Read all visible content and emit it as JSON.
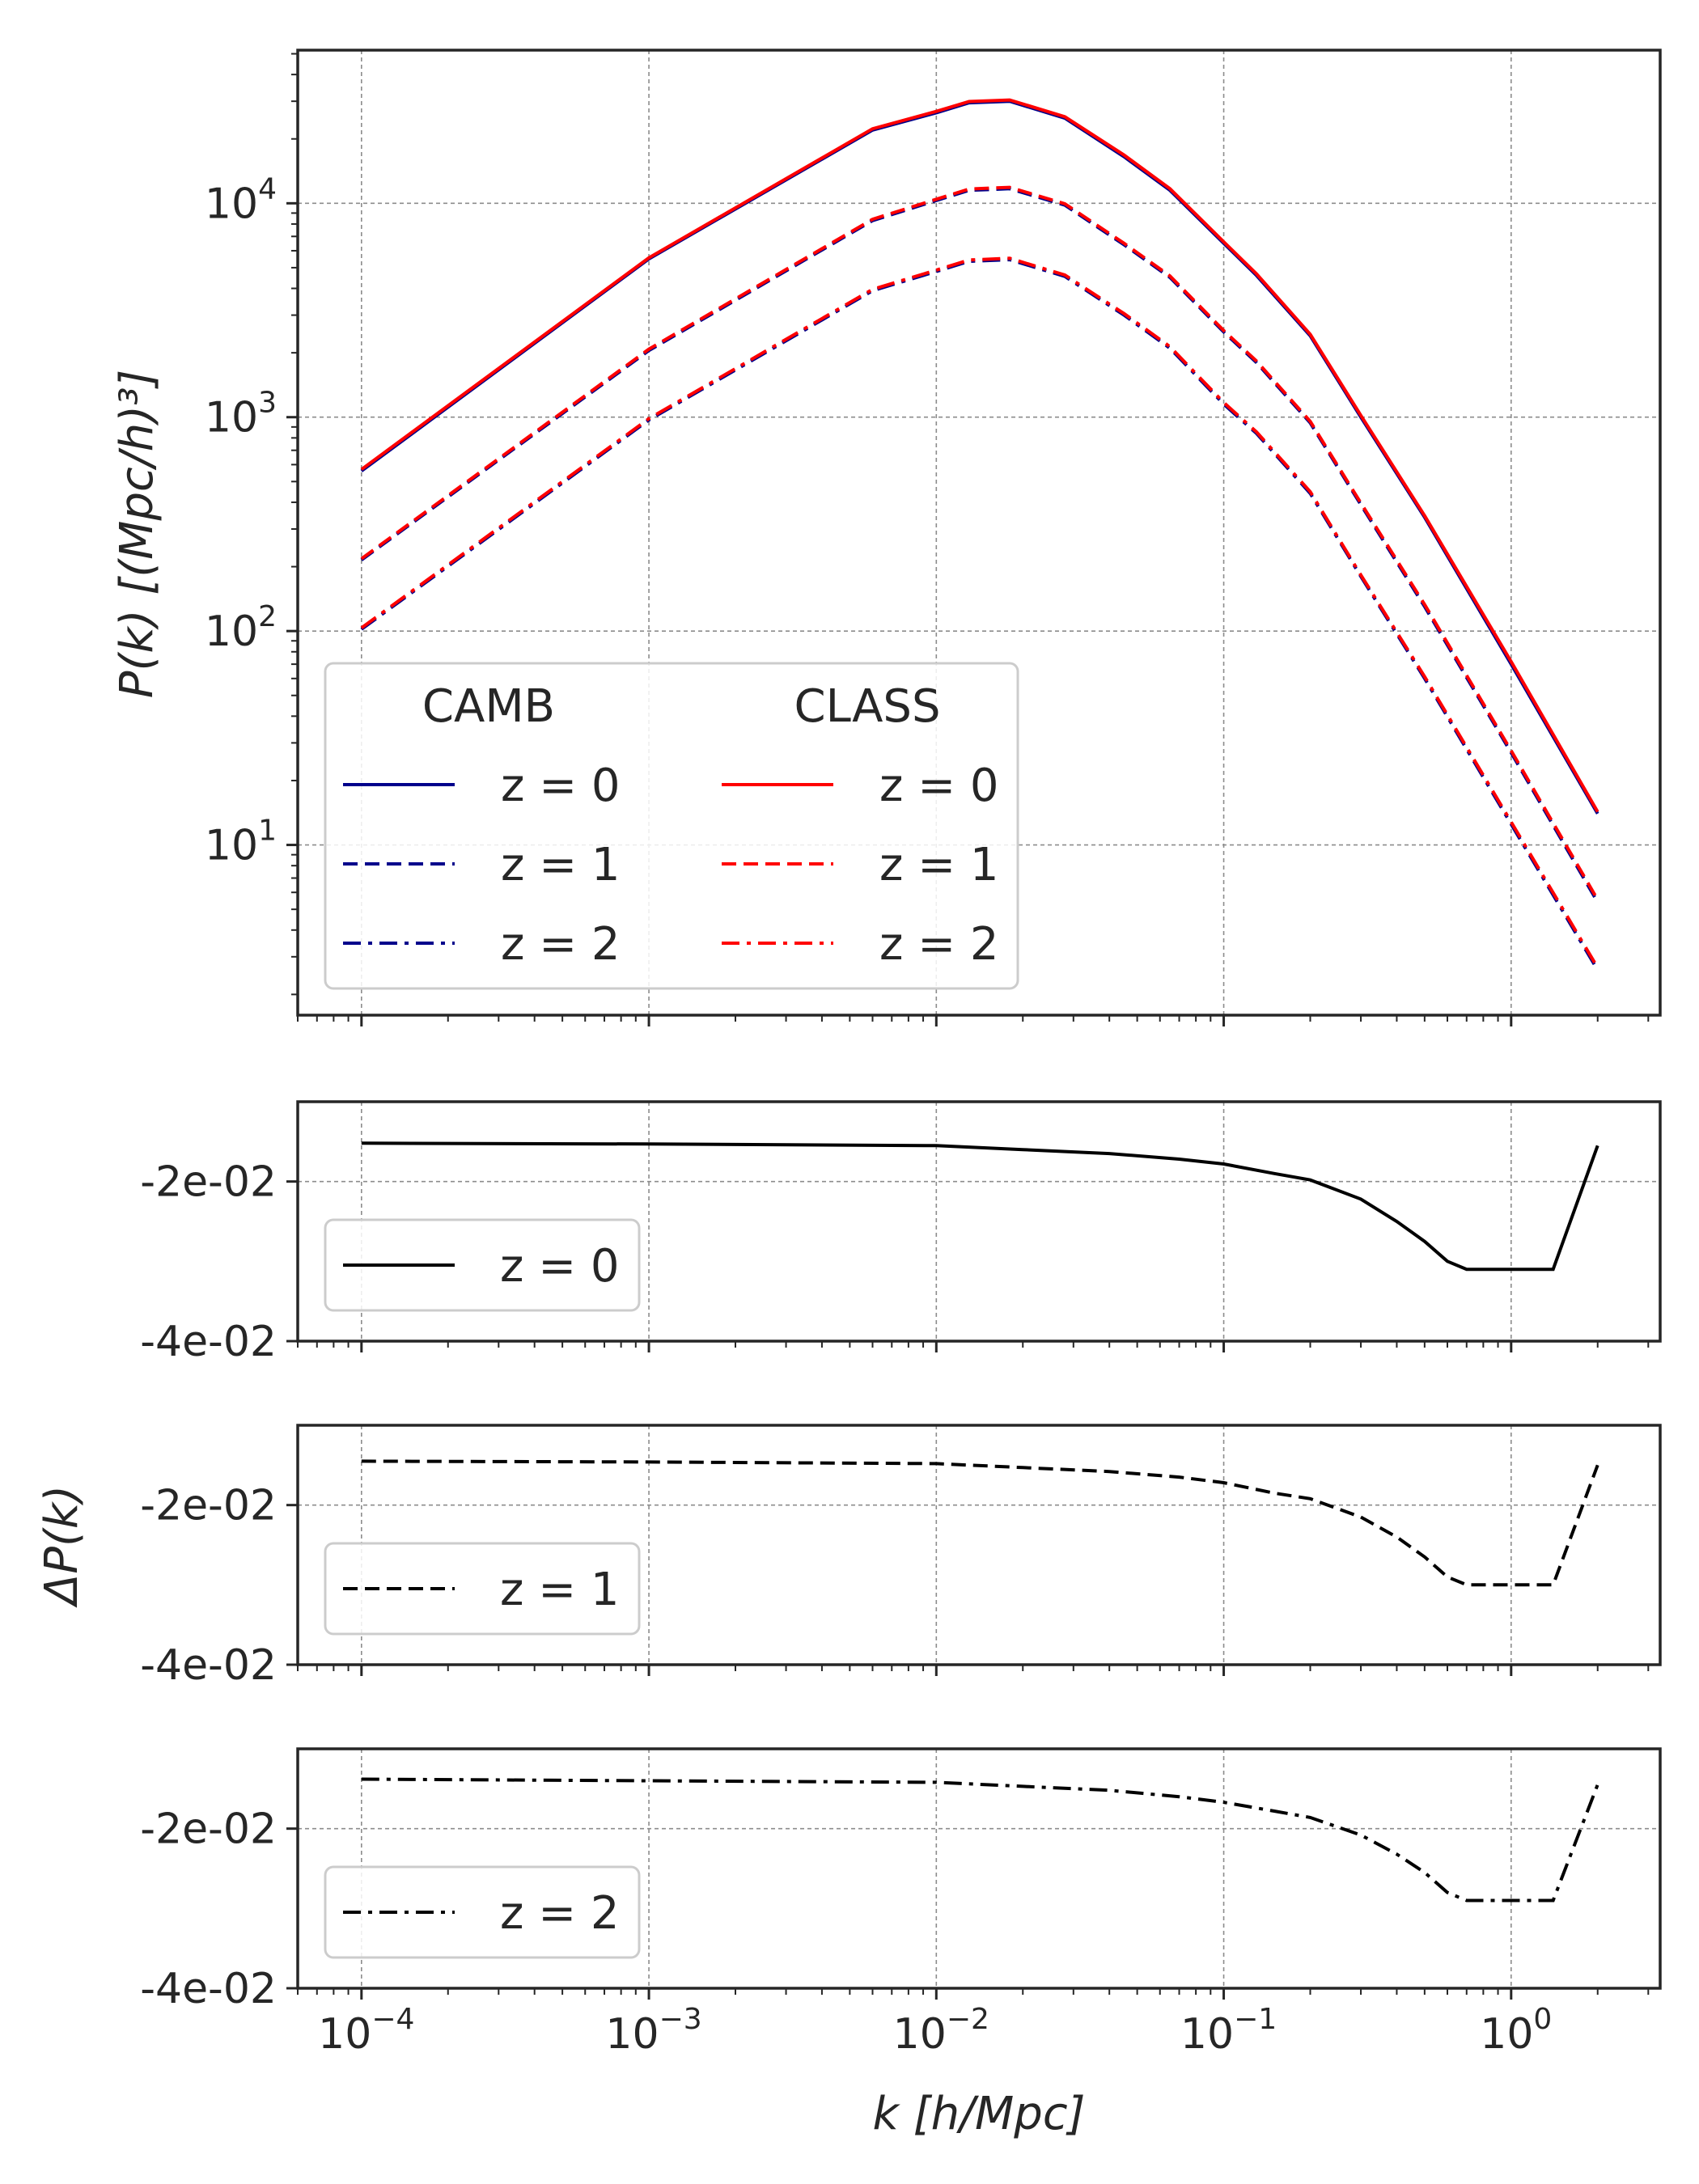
{
  "colors": {
    "camb": "#00008b",
    "class": "#ff0000",
    "diff": "#000000"
  },
  "chart_data": [
    {
      "type": "line",
      "id": "power-spectrum",
      "xscale": "log",
      "yscale": "log",
      "xlim": [
        6e-05,
        3.3
      ],
      "ylim": [
        1.6,
        52000
      ],
      "ylabel": "P(k) [(Mpc/h)³]",
      "xticks": [
        0.0001,
        0.001,
        0.01,
        0.1,
        1
      ],
      "yticks": [
        10,
        100,
        1000,
        10000
      ],
      "ytick_labels": [
        {
          "base": "10",
          "exp": "1"
        },
        {
          "base": "10",
          "exp": "2"
        },
        {
          "base": "10",
          "exp": "3"
        },
        {
          "base": "10",
          "exp": "4"
        }
      ],
      "grid": true,
      "legend": {
        "placement": "lower-left",
        "column_titles": [
          "CAMB",
          "CLASS"
        ],
        "entries": [
          {
            "code": "CAMB",
            "label": "z = 0",
            "dash": "solid"
          },
          {
            "code": "CAMB",
            "label": "z = 1",
            "dash": "dashed"
          },
          {
            "code": "CAMB",
            "label": "z = 2",
            "dash": "dashdot"
          },
          {
            "code": "CLASS",
            "label": "z = 0",
            "dash": "solid"
          },
          {
            "code": "CLASS",
            "label": "z = 1",
            "dash": "dashed"
          },
          {
            "code": "CLASS",
            "label": "z = 2",
            "dash": "dashdot"
          }
        ]
      },
      "x": [
        0.0001,
        0.001,
        0.006,
        0.01,
        0.013,
        0.018,
        0.028,
        0.045,
        0.065,
        0.1,
        0.13,
        0.2,
        0.3,
        0.5,
        1.0,
        2.0
      ],
      "series": [
        {
          "code": "CAMB",
          "z": 0,
          "dash": "solid",
          "values": [
            560,
            5500,
            22000,
            26500,
            29500,
            30000,
            25000,
            16500,
            11500,
            6500,
            4600,
            2400,
            1000,
            340,
            70,
            14
          ]
        },
        {
          "code": "CAMB",
          "z": 1,
          "dash": "dashed",
          "values": [
            215,
            2050,
            8300,
            10300,
            11500,
            11700,
            9800,
            6400,
            4500,
            2500,
            1800,
            940,
            390,
            130,
            27,
            5.4
          ]
        },
        {
          "code": "CAMB",
          "z": 2,
          "dash": "dashdot",
          "values": [
            102,
            970,
            3900,
            4800,
            5350,
            5450,
            4550,
            3000,
            2100,
            1150,
            840,
            440,
            180,
            60,
            12.5,
            2.6
          ]
        },
        {
          "code": "CLASS",
          "z": 0,
          "dash": "solid",
          "values": [
            570,
            5560,
            22300,
            26900,
            29900,
            30400,
            25400,
            16800,
            11700,
            6600,
            4680,
            2440,
            1020,
            346,
            72,
            14.3
          ]
        },
        {
          "code": "CLASS",
          "z": 1,
          "dash": "dashed",
          "values": [
            218,
            2080,
            8420,
            10450,
            11660,
            11870,
            9950,
            6500,
            4570,
            2540,
            1830,
            955,
            397,
            133,
            27.6,
            5.55
          ]
        },
        {
          "code": "CLASS",
          "z": 2,
          "dash": "dashdot",
          "values": [
            103.5,
            985,
            3960,
            4870,
            5430,
            5530,
            4620,
            3050,
            2135,
            1170,
            854,
            448,
            183,
            61.2,
            12.8,
            2.67
          ]
        }
      ]
    },
    {
      "type": "line",
      "id": "diff-z0",
      "xscale": "log",
      "xlim": [
        6e-05,
        3.3
      ],
      "ylim": [
        -0.04,
        -0.01
      ],
      "yticks": [
        -0.02,
        -0.04
      ],
      "ytick_labels": [
        "-2e-02",
        "-4e-02"
      ],
      "grid": true,
      "legend": {
        "placement": "lower-left",
        "entries": [
          {
            "label": "z = 0",
            "dash": "solid"
          }
        ]
      },
      "series": [
        {
          "label": "z = 0",
          "dash": "solid",
          "x": [
            0.0001,
            0.001,
            0.01,
            0.02,
            0.04,
            0.07,
            0.1,
            0.15,
            0.2,
            0.3,
            0.4,
            0.5,
            0.6,
            0.7,
            1.0,
            1.4,
            2.0
          ],
          "values": [
            -0.0152,
            -0.0153,
            -0.0155,
            -0.016,
            -0.0165,
            -0.0172,
            -0.0178,
            -0.019,
            -0.0198,
            -0.0222,
            -0.025,
            -0.0275,
            -0.03,
            -0.031,
            -0.031,
            -0.031,
            -0.0155
          ]
        }
      ]
    },
    {
      "type": "line",
      "id": "diff-z1",
      "xscale": "log",
      "xlim": [
        6e-05,
        3.3
      ],
      "ylim": [
        -0.04,
        -0.01
      ],
      "ylabel": "ΔP(k)",
      "yticks": [
        -0.02,
        -0.04
      ],
      "ytick_labels": [
        "-2e-02",
        "-4e-02"
      ],
      "grid": true,
      "legend": {
        "placement": "lower-left",
        "entries": [
          {
            "label": "z = 1",
            "dash": "dashed"
          }
        ]
      },
      "series": [
        {
          "label": "z = 1",
          "dash": "dashed",
          "x": [
            0.0001,
            0.001,
            0.01,
            0.02,
            0.04,
            0.07,
            0.1,
            0.15,
            0.2,
            0.3,
            0.4,
            0.5,
            0.6,
            0.7,
            1.0,
            1.4,
            2.0
          ],
          "values": [
            -0.0145,
            -0.0146,
            -0.0148,
            -0.0153,
            -0.0158,
            -0.0165,
            -0.0172,
            -0.0185,
            -0.0192,
            -0.0215,
            -0.024,
            -0.0265,
            -0.029,
            -0.03,
            -0.03,
            -0.03,
            -0.015
          ]
        }
      ]
    },
    {
      "type": "line",
      "id": "diff-z2",
      "xscale": "log",
      "xlim": [
        6e-05,
        3.3
      ],
      "ylim": [
        -0.04,
        -0.01
      ],
      "xlabel": "k [h/Mpc]",
      "xticks": [
        0.0001,
        0.001,
        0.01,
        0.1,
        1
      ],
      "xtick_labels": [
        {
          "base": "10",
          "exp": "−4"
        },
        {
          "base": "10",
          "exp": "−3"
        },
        {
          "base": "10",
          "exp": "−2"
        },
        {
          "base": "10",
          "exp": "−1"
        },
        {
          "base": "10",
          "exp": "0"
        }
      ],
      "yticks": [
        -0.02,
        -0.04
      ],
      "ytick_labels": [
        "-2e-02",
        "-4e-02"
      ],
      "grid": true,
      "legend": {
        "placement": "lower-left",
        "entries": [
          {
            "label": "z = 2",
            "dash": "dashdot"
          }
        ]
      },
      "series": [
        {
          "label": "z = 2",
          "dash": "dashdot",
          "x": [
            0.0001,
            0.001,
            0.01,
            0.02,
            0.04,
            0.07,
            0.1,
            0.15,
            0.2,
            0.3,
            0.4,
            0.5,
            0.6,
            0.7,
            1.0,
            1.4,
            2.0
          ],
          "values": [
            -0.0138,
            -0.014,
            -0.0142,
            -0.0147,
            -0.0152,
            -0.016,
            -0.0167,
            -0.0178,
            -0.0186,
            -0.0208,
            -0.0232,
            -0.0255,
            -0.028,
            -0.029,
            -0.029,
            -0.029,
            -0.0145
          ]
        }
      ]
    }
  ]
}
